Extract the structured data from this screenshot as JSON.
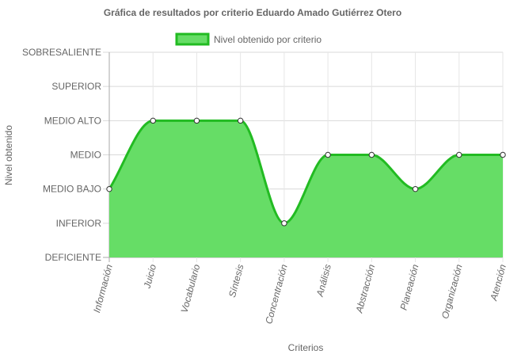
{
  "chart_data": {
    "type": "area",
    "title": "Gráfica de resultados por criterio Eduardo Amado Gutiérrez Otero",
    "xlabel": "Criterios",
    "ylabel": "Nivel obtenido",
    "y_levels": [
      "DEFICIENTE",
      "INFERIOR",
      "MEDIO BAJO",
      "MEDIO",
      "MEDIO ALTO",
      "SUPERIOR",
      "SOBRESALIENTE"
    ],
    "ylim": [
      0,
      6
    ],
    "categories": [
      "Información",
      "Juicio",
      "Vocabulario",
      "Síntesis",
      "Concentración",
      "Análisis",
      "Abstracción",
      "Planeación",
      "Organización",
      "Atención"
    ],
    "series": [
      {
        "name": "Nivel obtenido por criterio",
        "values": [
          2,
          4,
          4,
          4,
          1,
          3,
          3,
          2,
          3,
          3
        ],
        "fill_color": "#66dd66",
        "line_color": "#22bb22"
      }
    ],
    "legend_position": "top",
    "grid": true
  }
}
